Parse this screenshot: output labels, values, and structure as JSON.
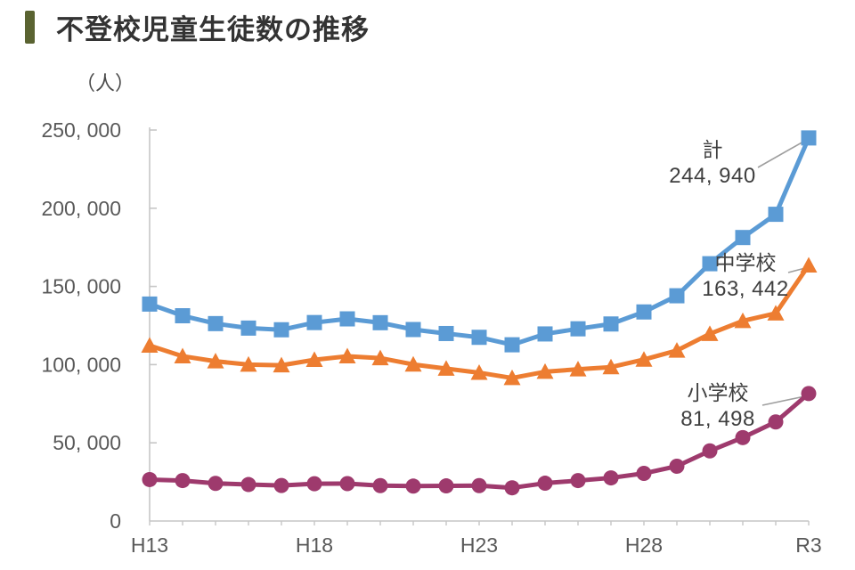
{
  "page": {
    "title": "不登校児童生徒数の推移",
    "title_marker_color": "#5a6331"
  },
  "chart_data": {
    "type": "line",
    "title": "不登校児童生徒数の推移",
    "unit_label": "（人）",
    "x_count": 21,
    "x_tick_labels": [
      "H13",
      "H18",
      "H23",
      "H28",
      "R3"
    ],
    "x_tick_label_indices": [
      0,
      5,
      10,
      15,
      20
    ],
    "ylim": [
      0,
      250000
    ],
    "y_ticks": [
      0,
      50000,
      100000,
      150000,
      200000,
      250000
    ],
    "y_tick_labels": [
      "0",
      "50, 000",
      "100, 000",
      "150, 000",
      "200, 000",
      "250, 000"
    ],
    "grid": false,
    "legend_position": "annotated-on-chart",
    "axis_color": "#c6c6c6",
    "tick_label_color": "#595959",
    "leader_line_color": "#9e9e9e",
    "series": [
      {
        "name": "計",
        "color": "#5B9BD5",
        "marker": "square",
        "values": [
          138722,
          131252,
          126226,
          123358,
          122287,
          126894,
          129255,
          126805,
          122432,
          119891,
          117458,
          112689,
          119617,
          122902,
          125991,
          133683,
          144031,
          164528,
          181272,
          196127,
          244940
        ]
      },
      {
        "name": "中学校",
        "color": "#ED7D31",
        "marker": "triangle",
        "values": [
          112211,
          105383,
          102149,
          100040,
          99578,
          103069,
          105328,
          104153,
          100105,
          97428,
          94836,
          91446,
          95442,
          97033,
          98408,
          103235,
          108999,
          119687,
          127922,
          132777,
          163442
        ]
      },
      {
        "name": "小学校",
        "color": "#9E3A6D",
        "marker": "circle",
        "values": [
          26511,
          25869,
          24077,
          23318,
          22709,
          23825,
          23927,
          22652,
          22327,
          22463,
          22622,
          21243,
          24175,
          25864,
          27583,
          30448,
          35032,
          44841,
          53350,
          63350,
          81498
        ]
      }
    ],
    "annotations": [
      {
        "label": "計",
        "value": "244, 940",
        "series": "計"
      },
      {
        "label": "中学校",
        "value": "163, 442",
        "series": "中学校"
      },
      {
        "label": "小学校",
        "value": "81, 498",
        "series": "小学校"
      }
    ]
  }
}
